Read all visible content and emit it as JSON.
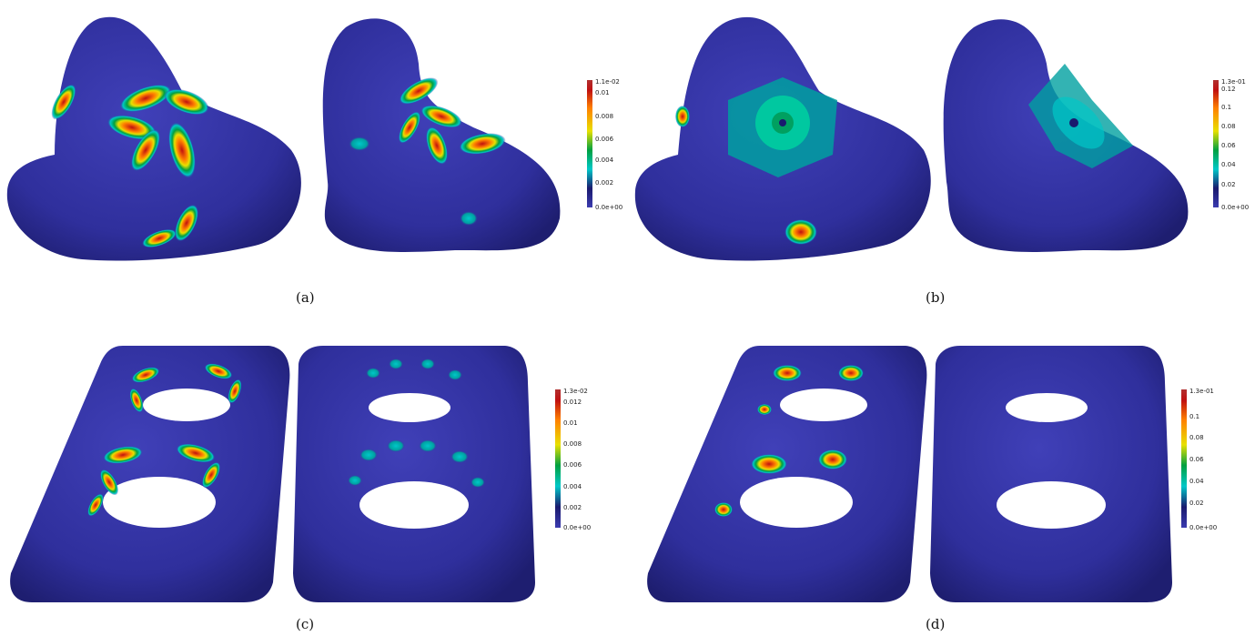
{
  "panels": [
    {
      "caption": "(a)",
      "colorbar": {
        "max_label": "1.1e-02",
        "ticks": [
          "0.01",
          "0.008",
          "0.006",
          "0.004",
          "0.002"
        ],
        "min_label": "0.0e+00"
      }
    },
    {
      "caption": "(b)",
      "colorbar": {
        "max_label": "1.3e-01",
        "ticks": [
          "0.12",
          "0.1",
          "0.08",
          "0.06",
          "0.04",
          "0.02"
        ],
        "min_label": "0.0e+00"
      }
    },
    {
      "caption": "(c)",
      "colorbar": {
        "max_label": "1.3e-02",
        "ticks": [
          "0.012",
          "0.01",
          "0.008",
          "0.006",
          "0.004",
          "0.002"
        ],
        "min_label": "0.0e+00"
      }
    },
    {
      "caption": "(d)",
      "colorbar": {
        "max_label": "1.3e-01",
        "ticks": [
          "0.1",
          "0.08",
          "0.06",
          "0.04",
          "0.02"
        ],
        "min_label": "0.0e+00"
      }
    }
  ],
  "colors": {
    "surface_base": "#2f2f9c",
    "colormap": [
      "#3b3bb0",
      "#1a1a6e",
      "#00c8c8",
      "#00a040",
      "#e8e000",
      "#ff8000",
      "#c01010",
      "#b03030"
    ]
  }
}
